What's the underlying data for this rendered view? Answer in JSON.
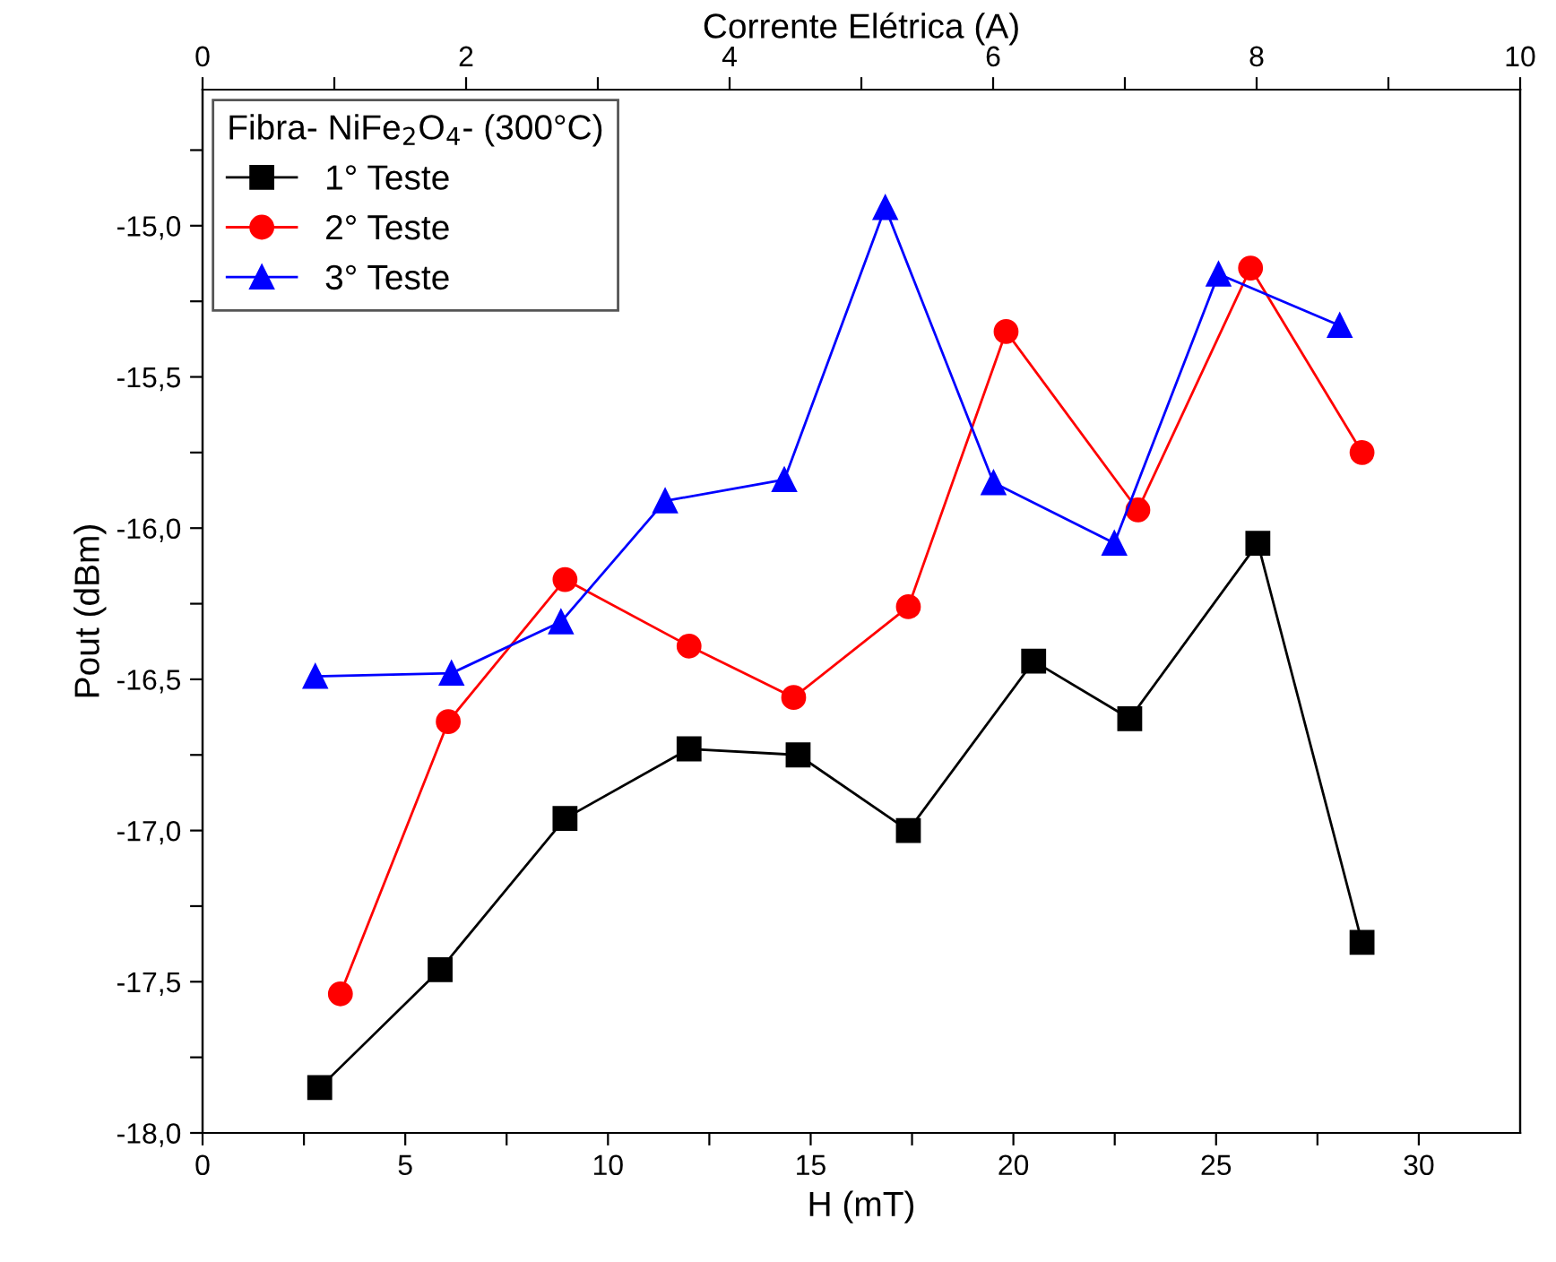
{
  "chart_data": {
    "type": "line",
    "xlabel": "H (mT)",
    "ylabel": "Pout (dBm)",
    "x2label": "Corrente Elétrica (A)",
    "legend_title": "Fibra- NiFe$_{2}$O$_{4}$- (300°C)",
    "legend": "top left",
    "grid": false,
    "line_style": "solid",
    "xlim": [
      0,
      32.5
    ],
    "xticks": [
      0,
      {
        "value": 2.5,
        "label": null
      },
      5,
      {
        "value": 7.5,
        "label": null
      },
      10,
      {
        "value": 12.5,
        "label": null
      },
      15,
      {
        "value": 17.5,
        "label": null
      },
      20,
      {
        "value": 22.5,
        "label": null
      },
      25,
      {
        "value": 27.5,
        "label": null
      },
      30
    ],
    "x2lim": [
      0,
      10
    ],
    "x2ticks": [
      0,
      {
        "value": 1,
        "label": null
      },
      2,
      {
        "value": 3,
        "label": null
      },
      4,
      {
        "value": 5,
        "label": null
      },
      6,
      {
        "value": 7,
        "label": null
      },
      8,
      {
        "value": 9,
        "label": null
      },
      10
    ],
    "ylim": [
      -18,
      -14.55
    ],
    "yticks": [
      {
        "value": -18,
        "label": "-18,0"
      },
      {
        "value": -17.75,
        "label": null
      },
      {
        "value": -17.5,
        "label": "-17,5"
      },
      {
        "value": -17.25,
        "label": null
      },
      {
        "value": -17,
        "label": "-17,0"
      },
      {
        "value": -16.75,
        "label": null
      },
      {
        "value": -16.5,
        "label": "-16,5"
      },
      {
        "value": -16.25,
        "label": null
      },
      {
        "value": -16,
        "label": "-16,0"
      },
      {
        "value": -15.75,
        "label": null
      },
      {
        "value": -15.5,
        "label": "-15,5"
      },
      {
        "value": -15.25,
        "label": null
      },
      {
        "value": -15,
        "label": "-15,0"
      },
      {
        "value": -14.75,
        "label": null
      }
    ],
    "series": [
      {
        "name": "1° Teste",
        "color": "#000000",
        "marker": "square",
        "x": [
          2.89,
          5.86,
          8.94,
          12.0,
          14.69,
          17.41,
          20.5,
          22.87,
          26.03,
          28.6
        ],
        "values": [
          -17.85,
          -17.46,
          -16.96,
          -16.73,
          -16.75,
          -17.0,
          -16.44,
          -16.63,
          -16.05,
          -17.37
        ]
      },
      {
        "name": "2° Teste",
        "color": "#ff0000",
        "marker": "circle",
        "x": [
          3.4,
          6.06,
          8.94,
          12.0,
          14.58,
          17.41,
          19.82,
          23.07,
          25.85,
          28.6
        ],
        "values": [
          -17.54,
          -16.64,
          -16.17,
          -16.39,
          -16.56,
          -16.26,
          -15.35,
          -15.94,
          -15.14,
          -15.75
        ]
      },
      {
        "name": "3° Teste",
        "color": "#0000ff",
        "marker": "triangle",
        "x": [
          2.78,
          6.14,
          8.84,
          11.41,
          14.35,
          16.84,
          19.51,
          22.49,
          25.06,
          28.05
        ],
        "values": [
          -16.49,
          -16.48,
          -16.31,
          -15.91,
          -15.84,
          -14.94,
          -15.85,
          -16.05,
          -15.16,
          -15.33
        ]
      }
    ]
  }
}
